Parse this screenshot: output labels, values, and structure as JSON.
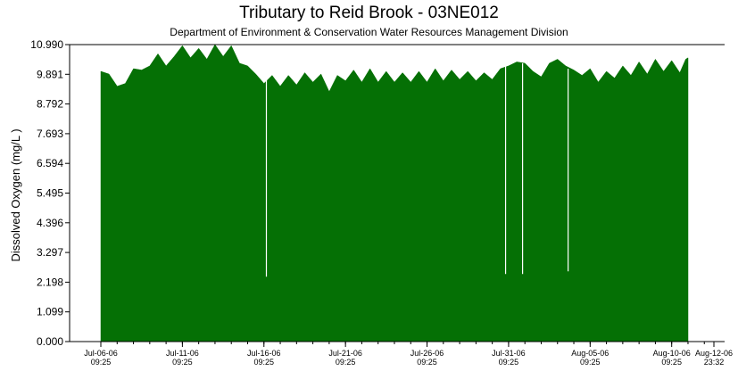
{
  "chart_data": {
    "type": "area",
    "title": "Tributary to Reid Brook - 03NE012",
    "subtitle": "Department of Environment & Conservation Water Resources Management Division",
    "xlabel": "",
    "ylabel": "Dissolved Oxygen (mg/L )",
    "ylim": [
      0,
      10.99
    ],
    "y_ticks": [
      "0.000",
      "1.099",
      "2.198",
      "3.297",
      "4.396",
      "5.495",
      "6.594",
      "7.693",
      "8.792",
      "9.891",
      "10.990"
    ],
    "x_start": "2006-07-06 09:25",
    "x_end": "2006-08-12 23:32",
    "x_ticks": [
      {
        "date": "2006-07-06 09:25",
        "label1": "Jul-06-06",
        "label2": "09:25"
      },
      {
        "date": "2006-07-11 09:25",
        "label1": "Jul-11-06",
        "label2": "09:25"
      },
      {
        "date": "2006-07-16 09:25",
        "label1": "Jul-16-06",
        "label2": "09:25"
      },
      {
        "date": "2006-07-21 09:25",
        "label1": "Jul-21-06",
        "label2": "09:25"
      },
      {
        "date": "2006-07-26 09:25",
        "label1": "Jul-26-06",
        "label2": "09:25"
      },
      {
        "date": "2006-07-31 09:25",
        "label1": "Jul-31-06",
        "label2": "09:25"
      },
      {
        "date": "2006-08-05 09:25",
        "label1": "Aug-05-06",
        "label2": "09:25"
      },
      {
        "date": "2006-08-10 09:25",
        "label1": "Aug-10-06",
        "label2": "09:25"
      },
      {
        "date": "2006-08-12 23:32",
        "label1": "Aug-12-06",
        "label2": "23:32"
      }
    ],
    "series": [
      {
        "color": "#057005",
        "points": [
          [
            "2006-07-06 09:25",
            10.0
          ],
          [
            "2006-07-06 21:25",
            9.9
          ],
          [
            "2006-07-07 09:25",
            9.45
          ],
          [
            "2006-07-07 21:25",
            9.55
          ],
          [
            "2006-07-08 09:25",
            10.1
          ],
          [
            "2006-07-08 21:25",
            10.05
          ],
          [
            "2006-07-09 09:25",
            10.2
          ],
          [
            "2006-07-09 21:25",
            10.65
          ],
          [
            "2006-07-10 09:25",
            10.2
          ],
          [
            "2006-07-10 21:25",
            10.55
          ],
          [
            "2006-07-11 09:25",
            10.95
          ],
          [
            "2006-07-11 21:25",
            10.5
          ],
          [
            "2006-07-12 09:25",
            10.85
          ],
          [
            "2006-07-12 21:25",
            10.45
          ],
          [
            "2006-07-13 09:25",
            10.99
          ],
          [
            "2006-07-13 21:25",
            10.55
          ],
          [
            "2006-07-14 09:25",
            10.95
          ],
          [
            "2006-07-14 21:25",
            10.3
          ],
          [
            "2006-07-15 09:25",
            10.2
          ],
          [
            "2006-07-15 21:25",
            9.9
          ],
          [
            "2006-07-16 09:25",
            9.55
          ],
          [
            "2006-07-16 21:25",
            9.85
          ],
          [
            "2006-07-17 09:25",
            9.45
          ],
          [
            "2006-07-17 21:25",
            9.85
          ],
          [
            "2006-07-18 09:25",
            9.5
          ],
          [
            "2006-07-18 21:25",
            9.95
          ],
          [
            "2006-07-19 09:25",
            9.6
          ],
          [
            "2006-07-19 21:25",
            9.9
          ],
          [
            "2006-07-20 09:25",
            9.25
          ],
          [
            "2006-07-20 21:25",
            9.85
          ],
          [
            "2006-07-21 09:25",
            9.65
          ],
          [
            "2006-07-21 21:25",
            10.05
          ],
          [
            "2006-07-22 09:25",
            9.6
          ],
          [
            "2006-07-22 21:25",
            10.1
          ],
          [
            "2006-07-23 09:25",
            9.6
          ],
          [
            "2006-07-23 21:25",
            10.0
          ],
          [
            "2006-07-24 09:25",
            9.6
          ],
          [
            "2006-07-24 21:25",
            9.95
          ],
          [
            "2006-07-25 09:25",
            9.6
          ],
          [
            "2006-07-25 21:25",
            10.0
          ],
          [
            "2006-07-26 09:25",
            9.6
          ],
          [
            "2006-07-26 21:25",
            10.1
          ],
          [
            "2006-07-27 09:25",
            9.65
          ],
          [
            "2006-07-27 21:25",
            10.05
          ],
          [
            "2006-07-28 09:25",
            9.7
          ],
          [
            "2006-07-28 21:25",
            10.0
          ],
          [
            "2006-07-29 09:25",
            9.65
          ],
          [
            "2006-07-29 21:25",
            9.95
          ],
          [
            "2006-07-30 09:25",
            9.7
          ],
          [
            "2006-07-30 21:25",
            10.1
          ],
          [
            "2006-07-31 09:25",
            10.2
          ],
          [
            "2006-07-31 21:25",
            10.35
          ],
          [
            "2006-08-01 09:25",
            10.3
          ],
          [
            "2006-08-01 21:25",
            10.0
          ],
          [
            "2006-08-02 09:25",
            9.8
          ],
          [
            "2006-08-02 21:25",
            10.3
          ],
          [
            "2006-08-03 09:25",
            10.45
          ],
          [
            "2006-08-03 21:25",
            10.2
          ],
          [
            "2006-08-04 09:25",
            10.05
          ],
          [
            "2006-08-04 21:25",
            9.85
          ],
          [
            "2006-08-05 09:25",
            10.1
          ],
          [
            "2006-08-05 21:25",
            9.6
          ],
          [
            "2006-08-06 09:25",
            10.0
          ],
          [
            "2006-08-06 21:25",
            9.75
          ],
          [
            "2006-08-07 09:25",
            10.2
          ],
          [
            "2006-08-07 21:25",
            9.85
          ],
          [
            "2006-08-08 09:25",
            10.35
          ],
          [
            "2006-08-08 21:25",
            9.9
          ],
          [
            "2006-08-09 09:25",
            10.45
          ],
          [
            "2006-08-09 21:25",
            10.0
          ],
          [
            "2006-08-10 09:25",
            10.4
          ],
          [
            "2006-08-10 21:25",
            9.95
          ],
          [
            "2006-08-11 09:25",
            10.5
          ],
          [
            "2006-08-11 06:00",
            10.45
          ]
        ]
      }
    ],
    "gaps": [
      {
        "date": "2006-07-16 13:00",
        "from": 2.4,
        "to": 9.7
      },
      {
        "date": "2006-07-31 05:00",
        "from": 2.5,
        "to": 10.2
      },
      {
        "date": "2006-08-01 06:00",
        "from": 2.5,
        "to": 10.3
      },
      {
        "date": "2006-08-04 01:00",
        "from": 2.6,
        "to": 10.1
      }
    ],
    "grid": false,
    "legend": "none"
  }
}
